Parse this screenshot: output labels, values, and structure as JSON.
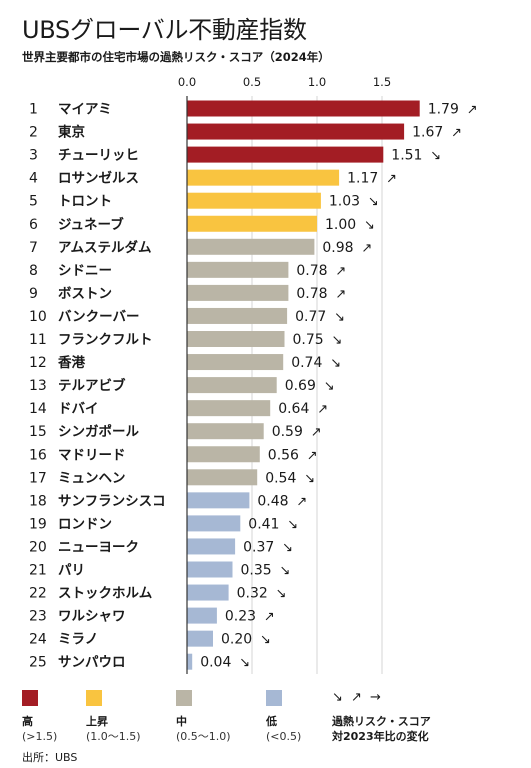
{
  "title": "UBSグローバル不動産指数",
  "subtitle": "世界主要都市の住宅市場の過熱リスク・スコア（2024年）",
  "source": "出所：UBS",
  "colors": {
    "high": "#a31d24",
    "rising": "#f9c440",
    "mid": "#bab5a6",
    "low": "#a6b8d4"
  },
  "chart_data": {
    "type": "bar",
    "orientation": "horizontal",
    "xlim": [
      0,
      1.9
    ],
    "xticks": [
      "0.0",
      "0.5",
      "1.0",
      "1.5"
    ],
    "xtick_values": [
      0,
      0.5,
      1.0,
      1.5
    ],
    "grid": true,
    "rows": [
      {
        "rank": "1",
        "city": "マイアミ",
        "value": 1.79,
        "label": "1.79",
        "trend": "↗",
        "tier": "high"
      },
      {
        "rank": "2",
        "city": "東京",
        "value": 1.67,
        "label": "1.67",
        "trend": "↗",
        "tier": "high"
      },
      {
        "rank": "3",
        "city": "チューリッヒ",
        "value": 1.51,
        "label": "1.51",
        "trend": "↘",
        "tier": "high"
      },
      {
        "rank": "4",
        "city": "ロサンゼルス",
        "value": 1.17,
        "label": "1.17",
        "trend": "↗",
        "tier": "rising"
      },
      {
        "rank": "5",
        "city": "トロント",
        "value": 1.03,
        "label": "1.03",
        "trend": "↘",
        "tier": "rising"
      },
      {
        "rank": "6",
        "city": "ジュネーブ",
        "value": 1.0,
        "label": "1.00",
        "trend": "↘",
        "tier": "rising"
      },
      {
        "rank": "7",
        "city": "アムステルダム",
        "value": 0.98,
        "label": "0.98",
        "trend": "↗",
        "tier": "mid"
      },
      {
        "rank": "8",
        "city": "シドニー",
        "value": 0.78,
        "label": "0.78",
        "trend": "↗",
        "tier": "mid"
      },
      {
        "rank": "9",
        "city": "ボストン",
        "value": 0.78,
        "label": "0.78",
        "trend": "↗",
        "tier": "mid"
      },
      {
        "rank": "10",
        "city": "バンクーバー",
        "value": 0.77,
        "label": "0.77",
        "trend": "↘",
        "tier": "mid"
      },
      {
        "rank": "11",
        "city": "フランクフルト",
        "value": 0.75,
        "label": "0.75",
        "trend": "↘",
        "tier": "mid"
      },
      {
        "rank": "12",
        "city": "香港",
        "value": 0.74,
        "label": "0.74",
        "trend": "↘",
        "tier": "mid"
      },
      {
        "rank": "13",
        "city": "テルアビブ",
        "value": 0.69,
        "label": "0.69",
        "trend": "↘",
        "tier": "mid"
      },
      {
        "rank": "14",
        "city": "ドバイ",
        "value": 0.64,
        "label": "0.64",
        "trend": "↗",
        "tier": "mid"
      },
      {
        "rank": "15",
        "city": "シンガポール",
        "value": 0.59,
        "label": "0.59",
        "trend": "↗",
        "tier": "mid"
      },
      {
        "rank": "16",
        "city": "マドリード",
        "value": 0.56,
        "label": "0.56",
        "trend": "↗",
        "tier": "mid"
      },
      {
        "rank": "17",
        "city": "ミュンヘン",
        "value": 0.54,
        "label": "0.54",
        "trend": "↘",
        "tier": "mid"
      },
      {
        "rank": "18",
        "city": "サンフランシスコ",
        "value": 0.48,
        "label": "0.48",
        "trend": "↗",
        "tier": "low"
      },
      {
        "rank": "19",
        "city": "ロンドン",
        "value": 0.41,
        "label": "0.41",
        "trend": "↘",
        "tier": "low"
      },
      {
        "rank": "20",
        "city": "ニューヨーク",
        "value": 0.37,
        "label": "0.37",
        "trend": "↘",
        "tier": "low"
      },
      {
        "rank": "21",
        "city": "パリ",
        "value": 0.35,
        "label": "0.35",
        "trend": "↘",
        "tier": "low"
      },
      {
        "rank": "22",
        "city": "ストックホルム",
        "value": 0.32,
        "label": "0.32",
        "trend": "↘",
        "tier": "low"
      },
      {
        "rank": "23",
        "city": "ワルシャワ",
        "value": 0.23,
        "label": "0.23",
        "trend": "↗",
        "tier": "low"
      },
      {
        "rank": "24",
        "city": "ミラノ",
        "value": 0.2,
        "label": "0.20",
        "trend": "↘",
        "tier": "low"
      },
      {
        "rank": "25",
        "city": "サンパウロ",
        "value": 0.04,
        "label": "0.04",
        "trend": "↘",
        "tier": "low"
      }
    ]
  },
  "legend": {
    "items": [
      {
        "tier": "high",
        "name": "高",
        "range": "(>1.5)"
      },
      {
        "tier": "rising",
        "name": "上昇",
        "range": "(1.0〜1.5)"
      },
      {
        "tier": "mid",
        "name": "中",
        "range": "(0.5〜1.0)"
      },
      {
        "tier": "low",
        "name": "低",
        "range": "(<0.5)"
      }
    ],
    "trend_arrows": "↘ ↗ →",
    "trend_label_1": "過熱リスク・スコア",
    "trend_label_2": "対2023年比の変化"
  }
}
